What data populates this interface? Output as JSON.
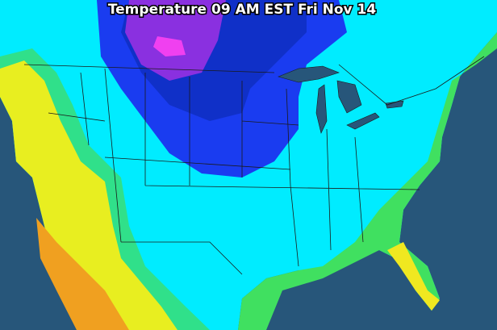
{
  "header": {
    "title": "Temperature 09 AM EST Fri Nov 14"
  }
}
